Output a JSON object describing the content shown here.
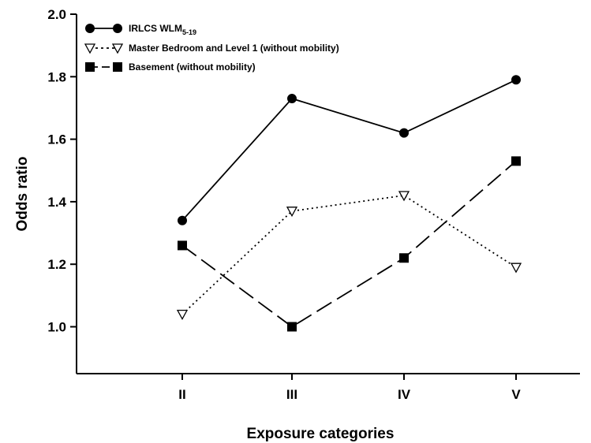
{
  "chart_data": {
    "type": "line",
    "categories": [
      "II",
      "III",
      "IV",
      "V"
    ],
    "xlabel": "Exposure categories",
    "ylabel": "Odds ratio",
    "ylim": [
      0.85,
      2.0
    ],
    "yticks": [
      "1.0",
      "1.2",
      "1.4",
      "1.6",
      "1.8",
      "2.0"
    ],
    "grid": false,
    "legend_position": "top-left",
    "series": [
      {
        "name": "IRLCS WLM",
        "name_subscript": "5-19",
        "values": [
          1.34,
          1.73,
          1.62,
          1.79
        ],
        "marker": "filled-circle",
        "line_style": "solid",
        "color": "#000000"
      },
      {
        "name": "Master Bedroom and Level 1 (without mobility)",
        "values": [
          1.04,
          1.37,
          1.42,
          1.19
        ],
        "marker": "open-triangle-down",
        "line_style": "dotted",
        "color": "#000000"
      },
      {
        "name": "Basement (without mobility)",
        "values": [
          1.26,
          1.0,
          1.22,
          1.53
        ],
        "marker": "filled-square",
        "line_style": "long-dash",
        "color": "#000000"
      }
    ]
  }
}
